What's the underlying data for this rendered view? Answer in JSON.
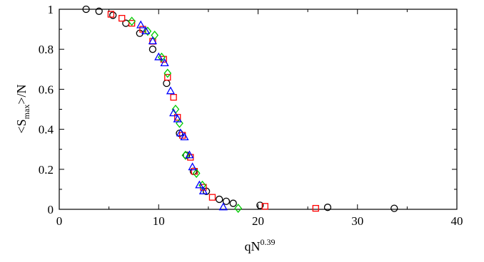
{
  "chart_data": {
    "type": "scatter",
    "title": "",
    "xlabel": {
      "base": "qN",
      "sup": "0.39"
    },
    "ylabel": {
      "pre": "<S",
      "sub": "max",
      "post": ">/N"
    },
    "xlim": [
      0,
      40
    ],
    "ylim": [
      0,
      1
    ],
    "xticks": [
      "0",
      "10",
      "20",
      "30",
      "40"
    ],
    "yticks": [
      "0",
      "0.2",
      "0.4",
      "0.6",
      "0.8",
      "1"
    ],
    "grid": false,
    "legend": "none",
    "series": [
      {
        "marker": "circle",
        "color": "#000000",
        "points": [
          [
            2.7,
            1.0
          ],
          [
            4.0,
            0.99
          ],
          [
            5.4,
            0.97
          ],
          [
            6.7,
            0.93
          ],
          [
            8.1,
            0.88
          ],
          [
            9.4,
            0.8
          ],
          [
            10.8,
            0.63
          ],
          [
            12.1,
            0.38
          ],
          [
            12.8,
            0.27
          ],
          [
            13.5,
            0.19
          ],
          [
            14.8,
            0.09
          ],
          [
            16.1,
            0.05
          ],
          [
            16.8,
            0.04
          ],
          [
            17.5,
            0.03
          ],
          [
            20.2,
            0.02
          ],
          [
            27.0,
            0.01
          ],
          [
            33.7,
            0.005
          ]
        ]
      },
      {
        "marker": "square",
        "color": "#ff0000",
        "points": [
          [
            5.2,
            0.975
          ],
          [
            6.3,
            0.955
          ],
          [
            7.3,
            0.93
          ],
          [
            8.4,
            0.9
          ],
          [
            9.4,
            0.84
          ],
          [
            10.5,
            0.75
          ],
          [
            10.9,
            0.66
          ],
          [
            11.5,
            0.56
          ],
          [
            11.9,
            0.46
          ],
          [
            12.4,
            0.37
          ],
          [
            13.2,
            0.26
          ],
          [
            13.6,
            0.19
          ],
          [
            14.5,
            0.11
          ],
          [
            15.4,
            0.06
          ],
          [
            20.7,
            0.015
          ],
          [
            25.8,
            0.005
          ]
        ]
      },
      {
        "marker": "diamond",
        "color": "#00cc00",
        "points": [
          [
            7.3,
            0.94
          ],
          [
            8.9,
            0.89
          ],
          [
            9.6,
            0.87
          ],
          [
            10.3,
            0.76
          ],
          [
            10.9,
            0.68
          ],
          [
            11.7,
            0.5
          ],
          [
            12.1,
            0.43
          ],
          [
            12.7,
            0.27
          ],
          [
            13.8,
            0.18
          ],
          [
            14.4,
            0.12
          ],
          [
            18.0,
            0.005
          ]
        ]
      },
      {
        "marker": "triangle",
        "color": "#0000ff",
        "points": [
          [
            8.2,
            0.92
          ],
          [
            8.7,
            0.89
          ],
          [
            9.4,
            0.84
          ],
          [
            10.0,
            0.76
          ],
          [
            10.6,
            0.73
          ],
          [
            11.2,
            0.59
          ],
          [
            11.5,
            0.48
          ],
          [
            11.9,
            0.45
          ],
          [
            12.2,
            0.38
          ],
          [
            12.6,
            0.36
          ],
          [
            13.1,
            0.27
          ],
          [
            13.4,
            0.21
          ],
          [
            14.1,
            0.12
          ],
          [
            14.5,
            0.09
          ],
          [
            16.5,
            0.01
          ]
        ]
      }
    ]
  }
}
